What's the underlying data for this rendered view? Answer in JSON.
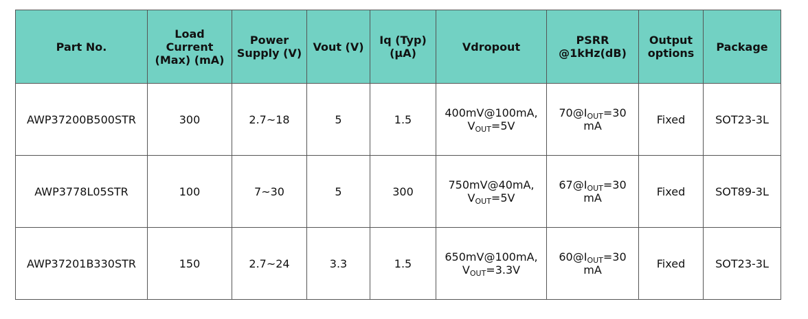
{
  "table": {
    "header": [
      "Part No.",
      "Load Current (Max) (mA)",
      "Power Supply (V)",
      "Vout (V)",
      "Iq (Typ) (μA)",
      "Vdropout",
      "PSRR @1kHz(dB)",
      "Output options",
      "Package"
    ],
    "rows": [
      [
        "AWP37200B500STR",
        "300",
        "2.7~18",
        "5",
        "1.5",
        {
          "lines": [
            [
              {
                "text": "400mV@100mA,"
              }
            ],
            [
              {
                "text": "V"
              },
              {
                "text": "OUT",
                "sub": true
              },
              {
                "text": "=5V"
              }
            ]
          ]
        },
        {
          "lines": [
            [
              {
                "text": "70@I"
              },
              {
                "text": "OUT",
                "sub": true
              },
              {
                "text": "=30"
              }
            ],
            [
              {
                "text": "mA"
              }
            ]
          ]
        },
        "Fixed",
        "SOT23-3L"
      ],
      [
        "AWP3778L05STR",
        "100",
        "7~30",
        "5",
        "300",
        {
          "lines": [
            [
              {
                "text": "750mV@40mA,"
              }
            ],
            [
              {
                "text": "V"
              },
              {
                "text": "OUT",
                "sub": true
              },
              {
                "text": "=5V"
              }
            ]
          ]
        },
        {
          "lines": [
            [
              {
                "text": "67@I"
              },
              {
                "text": "OUT",
                "sub": true
              },
              {
                "text": "=30"
              }
            ],
            [
              {
                "text": "mA"
              }
            ]
          ]
        },
        "Fixed",
        "SOT89-3L"
      ],
      [
        "AWP37201B330STR",
        "150",
        "2.7~24",
        "3.3",
        "1.5",
        {
          "lines": [
            [
              {
                "text": "650mV@100mA,"
              }
            ],
            [
              {
                "text": "V"
              },
              {
                "text": "OUT",
                "sub": true
              },
              {
                "text": "=3.3V"
              }
            ]
          ]
        },
        {
          "lines": [
            [
              {
                "text": "60@I"
              },
              {
                "text": "OUT",
                "sub": true
              },
              {
                "text": "=30"
              }
            ],
            [
              {
                "text": "mA"
              }
            ]
          ]
        },
        "Fixed",
        "SOT23-3L"
      ]
    ]
  }
}
